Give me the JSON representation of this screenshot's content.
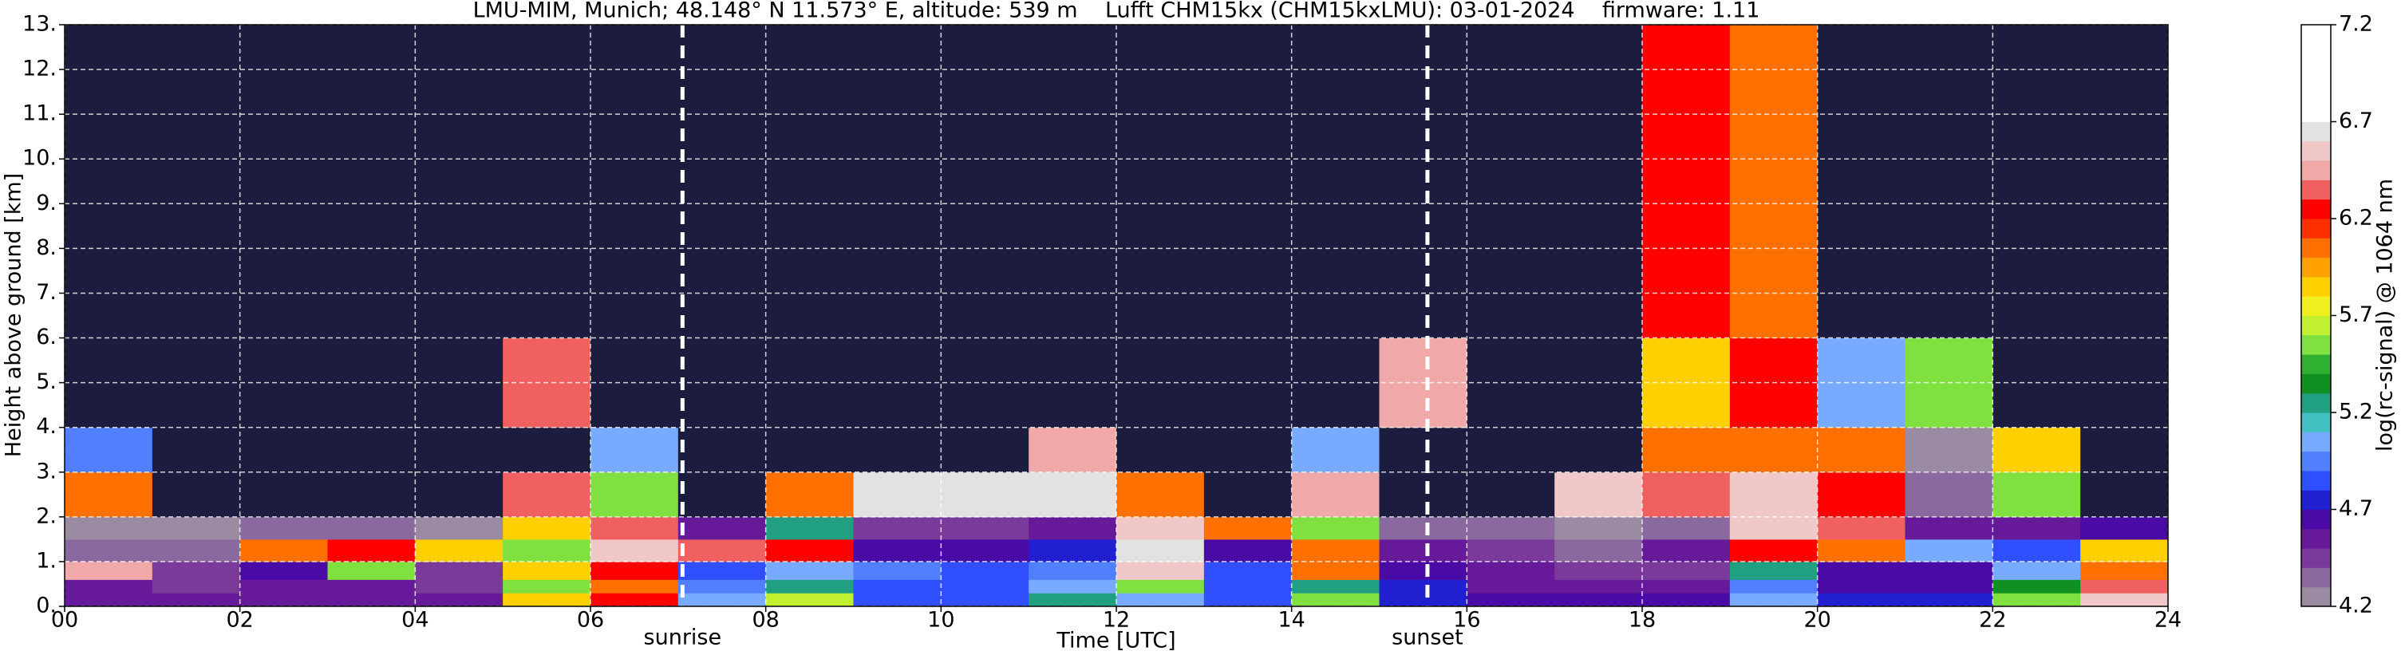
{
  "chart_data": {
    "type": "heatmap",
    "title": "LMU-MIM, Munich; 48.148° N 11.573° E, altitude: 539 m    Lufft CHM15kx (CHM15kxLMU): 03-01-2024    firmware: 1.11",
    "xlabel": "Time [UTC]",
    "ylabel": "Height above ground [km]",
    "xlim": [
      0,
      24
    ],
    "ylim": [
      0,
      13
    ],
    "xticks": [
      {
        "value": 0,
        "label": "00"
      },
      {
        "value": 2,
        "label": "02"
      },
      {
        "value": 4,
        "label": "04"
      },
      {
        "value": 6,
        "label": "06"
      },
      {
        "value": 8,
        "label": "08"
      },
      {
        "value": 10,
        "label": "10"
      },
      {
        "value": 12,
        "label": "12"
      },
      {
        "value": 14,
        "label": "14"
      },
      {
        "value": 16,
        "label": "16"
      },
      {
        "value": 18,
        "label": "18"
      },
      {
        "value": 20,
        "label": "20"
      },
      {
        "value": 22,
        "label": "22"
      },
      {
        "value": 24,
        "label": "24"
      }
    ],
    "yticks": [
      {
        "value": 0,
        "label": "0."
      },
      {
        "value": 1,
        "label": "1."
      },
      {
        "value": 2,
        "label": "2."
      },
      {
        "value": 3,
        "label": "3."
      },
      {
        "value": 4,
        "label": "4."
      },
      {
        "value": 5,
        "label": "5."
      },
      {
        "value": 6,
        "label": "6."
      },
      {
        "value": 7,
        "label": "7."
      },
      {
        "value": 8,
        "label": "8."
      },
      {
        "value": 9,
        "label": "9."
      },
      {
        "value": 10,
        "label": "10."
      },
      {
        "value": 11,
        "label": "11."
      },
      {
        "value": 12,
        "label": "12."
      },
      {
        "value": 13,
        "label": "13."
      }
    ],
    "grid": true,
    "markers": [
      {
        "label": "sunrise",
        "x": 7.05
      },
      {
        "label": "sunset",
        "x": 15.55
      }
    ],
    "x_edges": [
      0,
      1,
      2,
      3,
      4,
      5,
      6,
      7,
      8,
      9,
      10,
      11,
      12,
      13,
      14,
      15,
      16,
      17,
      18,
      19,
      20,
      21,
      22,
      23,
      24
    ],
    "y_edges": [
      0,
      0.3,
      0.6,
      1,
      1.5,
      2,
      3,
      4,
      6,
      13
    ],
    "values": [
      [
        4.5,
        4.5,
        4.5,
        4.5,
        4.5,
        5.8,
        6.2,
        5.0,
        5.6,
        4.8,
        4.8,
        5.2,
        5.0,
        4.8,
        5.5,
        4.7,
        4.6,
        4.6,
        4.6,
        5.0,
        4.7,
        4.7,
        5.5,
        6.5
      ],
      [
        4.5,
        4.4,
        4.5,
        4.5,
        4.4,
        5.5,
        6.0,
        4.9,
        5.2,
        4.8,
        4.8,
        5.0,
        5.5,
        4.8,
        5.2,
        4.7,
        4.5,
        4.5,
        4.5,
        4.9,
        4.6,
        4.6,
        5.3,
        6.3
      ],
      [
        6.4,
        4.4,
        4.6,
        5.5,
        4.4,
        5.8,
        6.2,
        4.8,
        5.0,
        4.9,
        4.8,
        4.9,
        6.5,
        4.8,
        6.0,
        4.6,
        4.5,
        4.4,
        4.4,
        5.2,
        4.6,
        4.6,
        5.0,
        6.0
      ],
      [
        4.3,
        4.3,
        6.0,
        6.2,
        5.8,
        5.5,
        6.5,
        6.3,
        6.2,
        4.6,
        4.6,
        4.7,
        6.6,
        4.6,
        6.0,
        4.5,
        4.4,
        4.3,
        4.5,
        6.2,
        6.0,
        5.0,
        4.8,
        5.8
      ],
      [
        4.2,
        4.2,
        4.3,
        4.3,
        4.2,
        5.8,
        6.3,
        4.5,
        5.2,
        4.4,
        4.4,
        4.5,
        6.5,
        6.0,
        5.5,
        4.3,
        4.3,
        4.2,
        4.3,
        6.5,
        6.3,
        4.5,
        4.5,
        4.6
      ],
      [
        6.0,
        4.0,
        4.0,
        4.0,
        4.0,
        6.3,
        5.5,
        4.0,
        6.0,
        6.6,
        6.6,
        6.6,
        6.0,
        4.1,
        6.4,
        4.0,
        4.0,
        6.5,
        6.3,
        6.5,
        6.2,
        4.3,
        5.5,
        4.1
      ],
      [
        4.9,
        4.0,
        4.0,
        4.0,
        4.0,
        4.1,
        5.0,
        4.0,
        4.0,
        4.0,
        4.0,
        6.4,
        4.0,
        4.0,
        5.0,
        4.0,
        4.0,
        4.0,
        6.0,
        6.0,
        6.0,
        4.2,
        5.8,
        4.0
      ],
      [
        4.0,
        4.0,
        4.0,
        4.0,
        4.0,
        6.3,
        4.0,
        4.0,
        4.0,
        4.0,
        4.0,
        4.0,
        4.0,
        4.0,
        4.0,
        6.4,
        4.0,
        4.0,
        5.8,
        6.2,
        5.0,
        5.5,
        4.0,
        4.0
      ],
      [
        4.0,
        4.0,
        4.0,
        4.0,
        4.0,
        4.0,
        4.0,
        4.0,
        4.0,
        4.1,
        4.1,
        4.1,
        4.1,
        4.0,
        4.0,
        4.0,
        4.0,
        4.0,
        6.2,
        6.0,
        4.0,
        4.0,
        4.0,
        4.0
      ]
    ],
    "under_color": "#1c1c3e",
    "colorbar": {
      "label": "log(rc-signal) @ 1064 nm",
      "lim": [
        4.2,
        7.2
      ],
      "ticks": [
        4.2,
        4.7,
        5.2,
        5.7,
        6.2,
        6.7,
        7.2
      ],
      "levels": [
        4.2,
        4.3,
        4.4,
        4.5,
        4.6,
        4.7,
        4.8,
        4.9,
        5.0,
        5.1,
        5.2,
        5.3,
        5.4,
        5.5,
        5.6,
        5.7,
        5.8,
        5.9,
        6.0,
        6.1,
        6.2,
        6.3,
        6.4,
        6.5,
        6.6,
        6.7,
        7.2
      ],
      "colors": [
        "#9a8aa2",
        "#8a6a9e",
        "#7a3a9a",
        "#661a9a",
        "#4a0aa6",
        "#2020d0",
        "#3050ff",
        "#5080ff",
        "#78aaff",
        "#40c0c0",
        "#20a080",
        "#109020",
        "#30b030",
        "#80e040",
        "#c0f030",
        "#f0f020",
        "#ffd000",
        "#ffa000",
        "#ff7000",
        "#ff3000",
        "#ff0000",
        "#f06060",
        "#f0a8a8",
        "#f0c8c8",
        "#e2e2e2",
        "#ffffff"
      ]
    }
  }
}
